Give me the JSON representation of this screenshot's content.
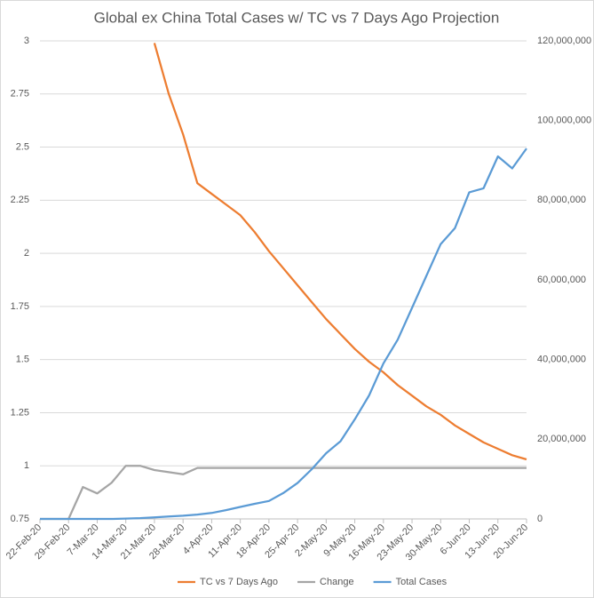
{
  "chart_data": {
    "type": "line",
    "title": "Global ex China Total Cases w/ TC vs 7 Days Ago Projection",
    "categories": [
      "22-Feb-20",
      null,
      "29-Feb-20",
      null,
      "7-Mar-20",
      null,
      "14-Mar-20",
      null,
      "21-Mar-20",
      null,
      "28-Mar-20",
      null,
      "4-Apr-20",
      null,
      "11-Apr-20",
      null,
      "18-Apr-20",
      null,
      "25-Apr-20",
      null,
      "2-May-20",
      null,
      "9-May-20",
      null,
      "16-May-20",
      null,
      "23-May-20",
      null,
      "30-May-20",
      null,
      "6-Jun-20",
      null,
      "13-Jun-20",
      null,
      "20-Jun-20"
    ],
    "series": [
      {
        "name": "TC vs 7 Days Ago",
        "color": "#ed7d31",
        "values": [
          null,
          null,
          null,
          null,
          null,
          null,
          null,
          null,
          2.99,
          2.75,
          2.56,
          2.33,
          2.28,
          2.23,
          2.18,
          2.1,
          2.01,
          1.93,
          1.85,
          1.77,
          1.69,
          1.62,
          1.55,
          1.49,
          1.44,
          1.38,
          1.33,
          1.28,
          1.24,
          1.19,
          1.15,
          1.11,
          1.08,
          1.05,
          1.03
        ]
      },
      {
        "name": "Change",
        "color": "#a5a5a5",
        "values": [
          0.75,
          0.75,
          0.75,
          0.9,
          0.87,
          0.92,
          1.0,
          1.0,
          0.98,
          0.97,
          0.96,
          0.99,
          0.99,
          0.99,
          0.99,
          0.99,
          0.99,
          0.99,
          0.99,
          0.99,
          0.99,
          0.99,
          0.99,
          0.99,
          0.99,
          0.99,
          0.99,
          0.99,
          0.99,
          0.99,
          0.99,
          0.99,
          0.99,
          0.99,
          0.99
        ]
      },
      {
        "name": "Total Cases",
        "color": "#5b9bd5",
        "axis": "y2",
        "values": [
          0,
          0,
          0,
          0,
          0,
          0,
          100000,
          200000,
          400000,
          600000,
          800000,
          1100000,
          1500000,
          2200000,
          3000000,
          3800000,
          4500000,
          6500000,
          9000000,
          12500000,
          16500000,
          19500000,
          25000000,
          31000000,
          39000000,
          45000000,
          53000000,
          61000000,
          69000000,
          73000000,
          82000000,
          83000000,
          91000000,
          88000000,
          93000000
        ]
      }
    ],
    "ylim": [
      0.75,
      3
    ],
    "yticks": [
      0.75,
      1,
      1.25,
      1.5,
      1.75,
      2,
      2.25,
      2.5,
      2.75,
      3
    ],
    "y2lim": [
      0,
      120000000
    ],
    "y2ticks": [
      0,
      {
        "value": 20000000,
        "label": "20,000,000"
      },
      {
        "value": 40000000,
        "label": "40,000,000"
      },
      {
        "value": 60000000,
        "label": "60,000,000"
      },
      {
        "value": 80000000,
        "label": "80,000,000"
      },
      {
        "value": 100000000,
        "label": "100,000,000"
      },
      {
        "value": 120000000,
        "label": "120,000,000"
      }
    ],
    "grid": true,
    "legend": "bottom"
  }
}
